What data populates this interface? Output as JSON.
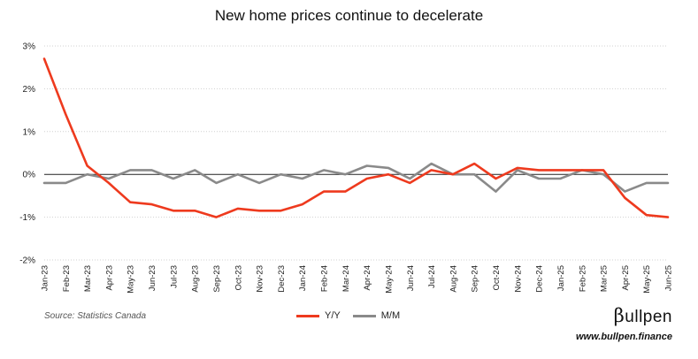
{
  "chart_data": {
    "type": "line",
    "title": "New home prices continue to decelerate",
    "xlabel": "",
    "ylabel": "",
    "categories": [
      "Jan-23",
      "Feb-23",
      "Mar-23",
      "Apr-23",
      "May-23",
      "Jun-23",
      "Jul-23",
      "Aug-23",
      "Sep-23",
      "Oct-23",
      "Nov-23",
      "Dec-23",
      "Jan-24",
      "Feb-24",
      "Mar-24",
      "Apr-24",
      "May-24",
      "Jun-24",
      "Jul-24",
      "Aug-24",
      "Sep-24",
      "Oct-24",
      "Nov-24",
      "Dec-24",
      "Jan-25",
      "Feb-25",
      "Mar-25",
      "Apr-25",
      "May-25",
      "Jun-25"
    ],
    "series": [
      {
        "name": "Y/Y",
        "color": "#ee3a1e",
        "values": [
          2.7,
          1.4,
          0.2,
          -0.2,
          -0.65,
          -0.7,
          -0.85,
          -0.85,
          -1.0,
          -0.8,
          -0.85,
          -0.85,
          -0.7,
          -0.4,
          -0.4,
          -0.1,
          0.0,
          -0.2,
          0.1,
          0.0,
          0.25,
          -0.1,
          0.15,
          0.1,
          0.1,
          0.1,
          0.1,
          -0.55,
          -0.95,
          -1.0
        ]
      },
      {
        "name": "M/M",
        "color": "#8a8a8a",
        "values": [
          -0.2,
          -0.2,
          0.0,
          -0.1,
          0.1,
          0.1,
          -0.1,
          0.1,
          -0.2,
          0.0,
          -0.2,
          0.0,
          -0.1,
          0.1,
          0.0,
          0.2,
          0.15,
          -0.1,
          0.25,
          0.0,
          0.0,
          -0.4,
          0.1,
          -0.1,
          -0.1,
          0.1,
          0.0,
          -0.4,
          -0.2,
          -0.2
        ]
      }
    ],
    "yticks": [
      "-2%",
      "-1%",
      "0%",
      "1%",
      "2%",
      "3%"
    ],
    "ylim": [
      -2,
      3
    ],
    "grid": true,
    "legend": "bottom-center"
  },
  "footer": {
    "source": "Source: Statistics Canada",
    "brand_symbol": "β",
    "brand_text": "ullpen",
    "site": "www.bullpen.finance"
  }
}
